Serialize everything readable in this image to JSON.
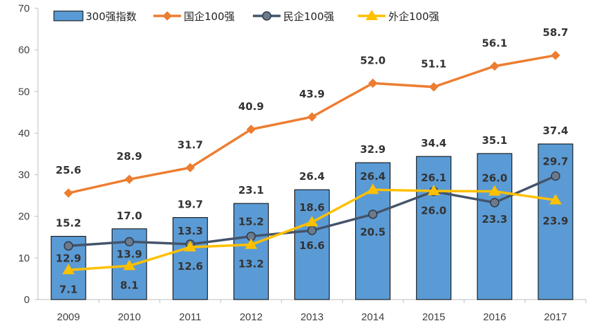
{
  "chart_data": {
    "type": "bar",
    "categories": [
      "2009",
      "2010",
      "2011",
      "2012",
      "2013",
      "2014",
      "2015",
      "2016",
      "2017"
    ],
    "ylim": [
      0,
      70
    ],
    "yticks": [
      "0",
      "10",
      "20",
      "30",
      "40",
      "50",
      "60",
      "70"
    ],
    "grid": false,
    "legend_position": "top",
    "series": [
      {
        "name": "300强指数",
        "kind": "bar",
        "color": "#5B9BD5",
        "values": [
          15.2,
          17.0,
          19.7,
          23.1,
          26.4,
          32.9,
          34.4,
          35.1,
          37.4
        ],
        "labels": [
          "15.2",
          "17.0",
          "19.7",
          "23.1",
          "26.4",
          "32.9",
          "34.4",
          "35.1",
          "37.4"
        ]
      },
      {
        "name": "国企100强",
        "kind": "line",
        "marker": "diamond",
        "color": "#ED7D31",
        "values": [
          25.6,
          28.9,
          31.7,
          40.9,
          43.9,
          52.0,
          51.1,
          56.1,
          58.7
        ],
        "labels": [
          "25.6",
          "28.9",
          "31.7",
          "40.9",
          "43.9",
          "52.0",
          "51.1",
          "56.1",
          "58.7"
        ]
      },
      {
        "name": "民企100强",
        "kind": "line",
        "marker": "circle",
        "color": "#44546A",
        "values": [
          12.9,
          13.9,
          13.3,
          15.2,
          16.6,
          20.5,
          26.0,
          23.3,
          29.7
        ],
        "labels": [
          "12.9",
          "13.9",
          "13.3",
          "15.2",
          "16.6",
          "20.5",
          "26.0",
          "23.3",
          "29.7"
        ]
      },
      {
        "name": "外企100强",
        "kind": "line",
        "marker": "triangle",
        "color": "#FFC000",
        "values": [
          7.1,
          8.1,
          12.6,
          13.2,
          18.6,
          26.4,
          26.1,
          26.0,
          23.9
        ],
        "labels": [
          "7.1",
          "8.1",
          "12.6",
          "13.2",
          "18.6",
          "26.4",
          "26.1",
          "26.0",
          "23.9"
        ]
      }
    ]
  }
}
